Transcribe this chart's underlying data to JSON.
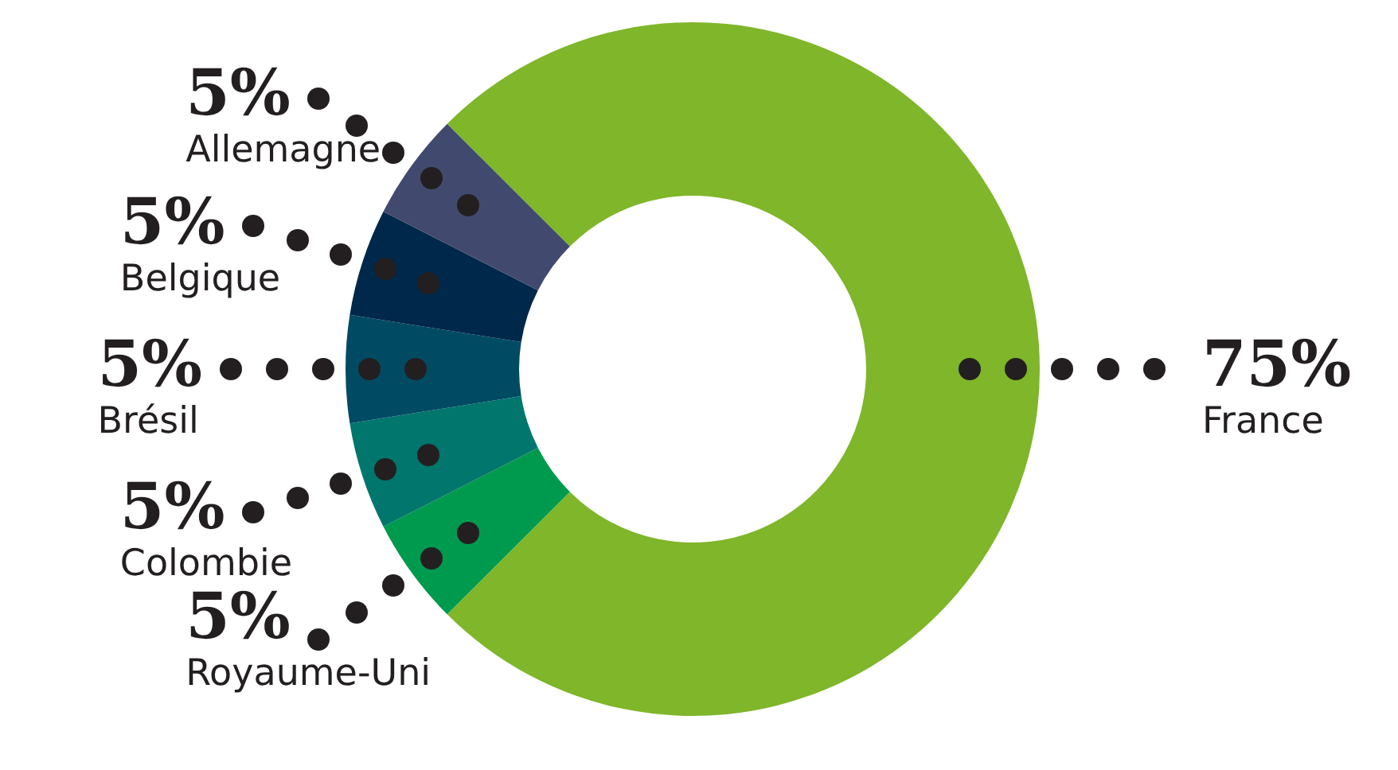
{
  "chart_data": {
    "type": "donut",
    "categories": [
      "France",
      "Royaume-Uni",
      "Colombie",
      "Brésil",
      "Belgique",
      "Allemagne"
    ],
    "values": [
      75,
      5,
      5,
      5,
      5,
      5
    ],
    "colors": [
      "#7fb62a",
      "#009a4e",
      "#00766c",
      "#004b63",
      "#00284a",
      "#414a6e"
    ],
    "value_labels": [
      "75%",
      "5%",
      "5%",
      "5%",
      "5%",
      "5%"
    ],
    "legend": false
  }
}
